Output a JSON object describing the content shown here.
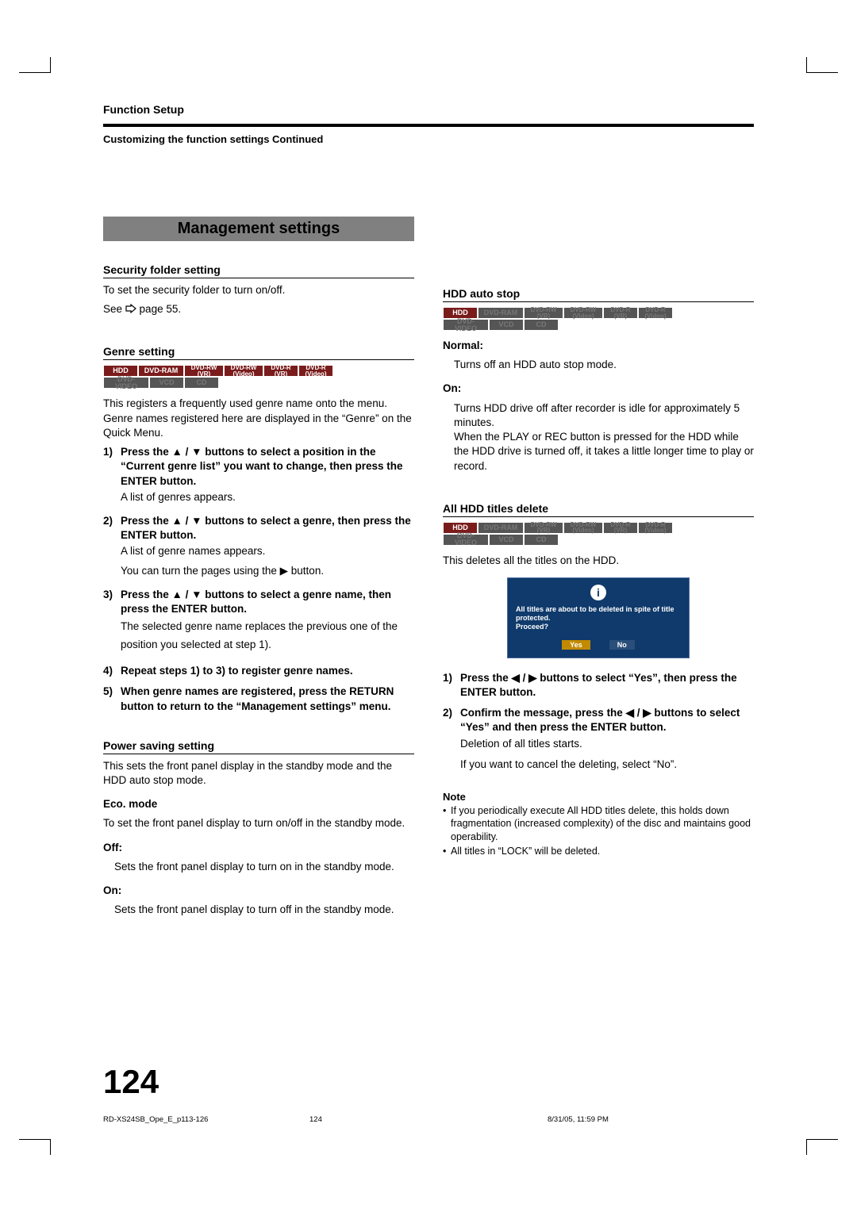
{
  "header": {
    "chapter": "Function Setup",
    "subtitle": "Customizing the function settings Continued"
  },
  "section_banner": "Management settings",
  "left": {
    "security": {
      "head": "Security folder setting",
      "line1": "To set the security folder to turn on/off.",
      "line2a": "See ",
      "line2b": " page 55."
    },
    "genre": {
      "head": "Genre setting",
      "media": {
        "row1": [
          "HDD",
          "DVD-RAM",
          "DVD-RW\n(VR)",
          "DVD-RW\n(Video)",
          "DVD-R\n(VR)",
          "DVD-R\n(Video)"
        ],
        "row2": [
          "DVD-VIDEO",
          "VCD",
          "CD"
        ],
        "row1_on": [
          true,
          true,
          true,
          true,
          true,
          true
        ],
        "row2_on": [
          false,
          false,
          false
        ]
      },
      "intro": "This registers a frequently used genre name onto the menu. Genre names registered here are displayed in the “Genre” on the Quick Menu.",
      "s1_num": "1)",
      "s1": "Press the ▲ / ▼ buttons to select a position in the “Current genre list” you want to change, then press the ENTER button.",
      "s1_after": "A list of genres appears.",
      "s2_num": "2)",
      "s2": "Press the ▲ / ▼ buttons to select a genre, then press the ENTER button.",
      "s2_after1": "A list of genre names appears.",
      "s2_after2": "You can turn the pages using the ▶ button.",
      "s3_num": "3)",
      "s3": "Press the ▲ / ▼ buttons to select a genre name, then press the ENTER button.",
      "s3_after": "The selected genre name replaces the previous one of the position you selected at step 1).",
      "s4_num": "4)",
      "s4": "Repeat steps 1) to 3) to register genre names.",
      "s5_num": "5)",
      "s5": "When genre names are registered, press the RETURN button to return to the “Management settings” menu."
    },
    "power": {
      "head": "Power saving setting",
      "intro": "This sets the front panel display in the standby mode and the HDD auto stop mode.",
      "eco_head": "Eco. mode",
      "eco_body": "To set the front panel display to turn on/off in the standby mode.",
      "off_head": "Off:",
      "off_body": "Sets the front panel display to turn on in the standby mode.",
      "on_head": "On:",
      "on_body": "Sets the front panel display to turn off in the standby mode."
    }
  },
  "right": {
    "hdd_auto": {
      "head": "HDD auto stop",
      "media": {
        "row1": [
          "HDD",
          "DVD-RAM",
          "DVD-RW\n(VR)",
          "DVD-RW\n(Video)",
          "DVD-R\n(VR)",
          "DVD-R\n(Video)"
        ],
        "row2": [
          "DVD-VIDEO",
          "VCD",
          "CD"
        ],
        "row1_on": [
          true,
          false,
          false,
          false,
          false,
          false
        ],
        "row2_on": [
          false,
          false,
          false
        ]
      },
      "normal_head": "Normal:",
      "normal_body": "Turns off an HDD auto stop mode.",
      "on_head": "On:",
      "on_body": "Turns HDD drive off after recorder is idle for approximately 5 minutes.\nWhen the PLAY or REC button is pressed for the HDD while the HDD drive is turned off, it takes a little longer time to play or record."
    },
    "all_delete": {
      "head": "All HDD titles delete",
      "media": {
        "row1": [
          "HDD",
          "DVD-RAM",
          "DVD-RW\n(VR)",
          "DVD-RW\n(Video)",
          "DVD-R\n(VR)",
          "DVD-R\n(Video)"
        ],
        "row2": [
          "DVD-VIDEO",
          "VCD",
          "CD"
        ],
        "row1_on": [
          true,
          false,
          false,
          false,
          false,
          false
        ],
        "row2_on": [
          false,
          false,
          false
        ]
      },
      "intro": "This deletes all the titles on the HDD.",
      "dialog_msg": "All titles are about to be deleted in spite of title protected.\nProceed?",
      "dialog_yes": "Yes",
      "dialog_no": "No",
      "s1_num": "1)",
      "s1": "Press the ◀ / ▶ buttons to select “Yes”, then press the ENTER button.",
      "s2_num": "2)",
      "s2": "Confirm the message, press the ◀ / ▶ buttons to select “Yes” and then press the ENTER button.",
      "after1": "Deletion of all titles starts.",
      "after2": "If you want to cancel the deleting, select “No”.",
      "note_head": "Note",
      "note1": "If you periodically execute All HDD titles delete, this holds down fragmentation (increased complexity) of the disc and maintains good operability.",
      "note2": "All titles in “LOCK” will be deleted."
    }
  },
  "page_number": "124",
  "footer": {
    "file": "RD-XS24SB_Ope_E_p113-126",
    "page": "124",
    "date": "8/31/05, 11:59 PM"
  },
  "colors": {
    "banner_bg": "#808080",
    "media_on": "#7a1c1c",
    "media_off": "#555555",
    "dialog_bg": "#0f3a6b",
    "dialog_btn_sel": "#c28a00"
  }
}
